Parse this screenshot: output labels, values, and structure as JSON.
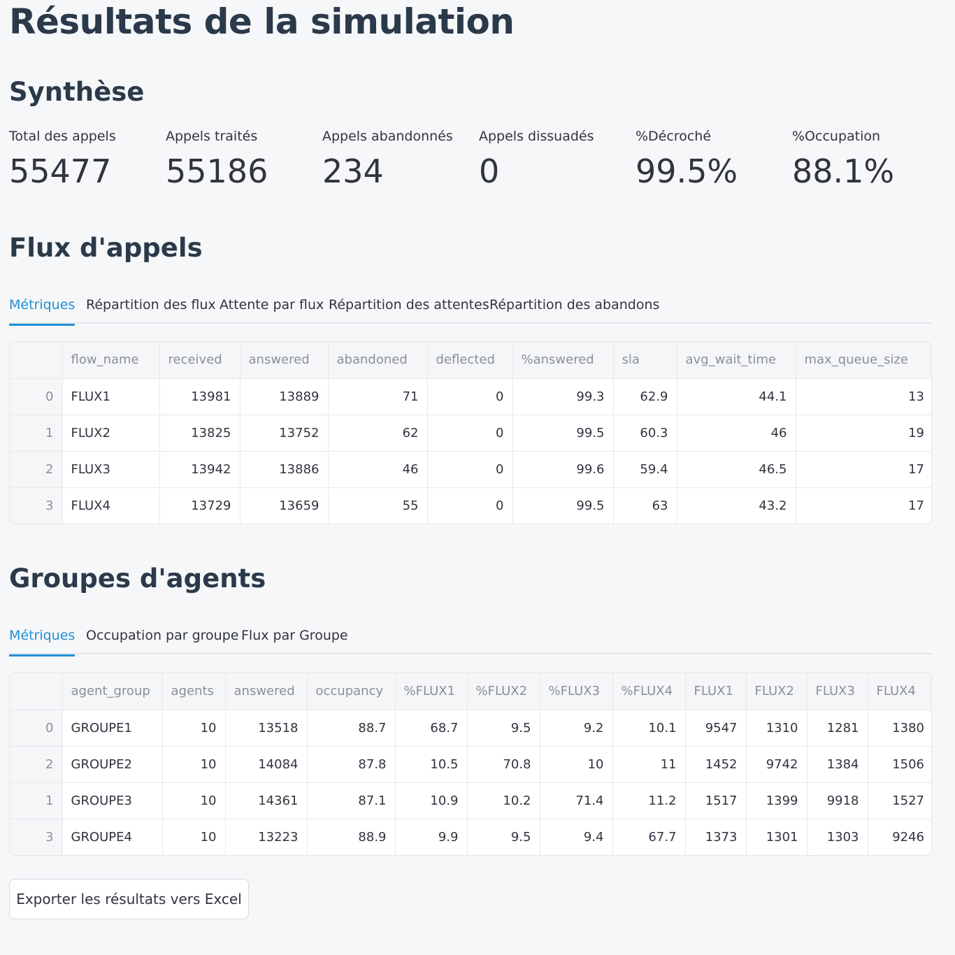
{
  "page_title": "Résultats de la simulation",
  "summary": {
    "heading": "Synthèse",
    "metrics": [
      {
        "label": "Total des appels",
        "value": "55477"
      },
      {
        "label": "Appels traités",
        "value": "55186"
      },
      {
        "label": "Appels abandonnés",
        "value": "234"
      },
      {
        "label": "Appels dissuadés",
        "value": "0"
      },
      {
        "label": "%Décroché",
        "value": "99.5%"
      },
      {
        "label": "%Occupation",
        "value": "88.1%"
      }
    ]
  },
  "flows": {
    "heading": "Flux d'appels",
    "tabs": [
      "Métriques",
      "Répartition des flux",
      "Attente par flux",
      "Répartition des attentes",
      "Répartition des abandons"
    ],
    "active_tab": 0,
    "table": {
      "columns": [
        "",
        "flow_name",
        "received",
        "answered",
        "abandoned",
        "deflected",
        "%answered",
        "sla",
        "avg_wait_time",
        "max_queue_size"
      ],
      "rows": [
        [
          "0",
          "FLUX1",
          "13981",
          "13889",
          "71",
          "0",
          "99.3",
          "62.9",
          "44.1",
          "13"
        ],
        [
          "1",
          "FLUX2",
          "13825",
          "13752",
          "62",
          "0",
          "99.5",
          "60.3",
          "46",
          "19"
        ],
        [
          "2",
          "FLUX3",
          "13942",
          "13886",
          "46",
          "0",
          "99.6",
          "59.4",
          "46.5",
          "17"
        ],
        [
          "3",
          "FLUX4",
          "13729",
          "13659",
          "55",
          "0",
          "99.5",
          "63",
          "43.2",
          "17"
        ]
      ]
    }
  },
  "groups": {
    "heading": "Groupes d'agents",
    "tabs": [
      "Métriques",
      "Occupation par groupe",
      "Flux par Groupe"
    ],
    "active_tab": 0,
    "table": {
      "columns": [
        "",
        "agent_group",
        "agents",
        "answered",
        "occupancy",
        "%FLUX1",
        "%FLUX2",
        "%FLUX3",
        "%FLUX4",
        "FLUX1",
        "FLUX2",
        "FLUX3",
        "FLUX4"
      ],
      "rows": [
        [
          "0",
          "GROUPE1",
          "10",
          "13518",
          "88.7",
          "68.7",
          "9.5",
          "9.2",
          "10.1",
          "9547",
          "1310",
          "1281",
          "1380"
        ],
        [
          "2",
          "GROUPE2",
          "10",
          "14084",
          "87.8",
          "10.5",
          "70.8",
          "10",
          "11",
          "1452",
          "9742",
          "1384",
          "1506"
        ],
        [
          "1",
          "GROUPE3",
          "10",
          "14361",
          "87.1",
          "10.9",
          "10.2",
          "71.4",
          "11.2",
          "1517",
          "1399",
          "9918",
          "1527"
        ],
        [
          "3",
          "GROUPE4",
          "10",
          "13223",
          "88.9",
          "9.9",
          "9.5",
          "9.4",
          "67.7",
          "1373",
          "1301",
          "1303",
          "9246"
        ]
      ]
    }
  },
  "export_button": "Exporter les résultats vers Excel"
}
